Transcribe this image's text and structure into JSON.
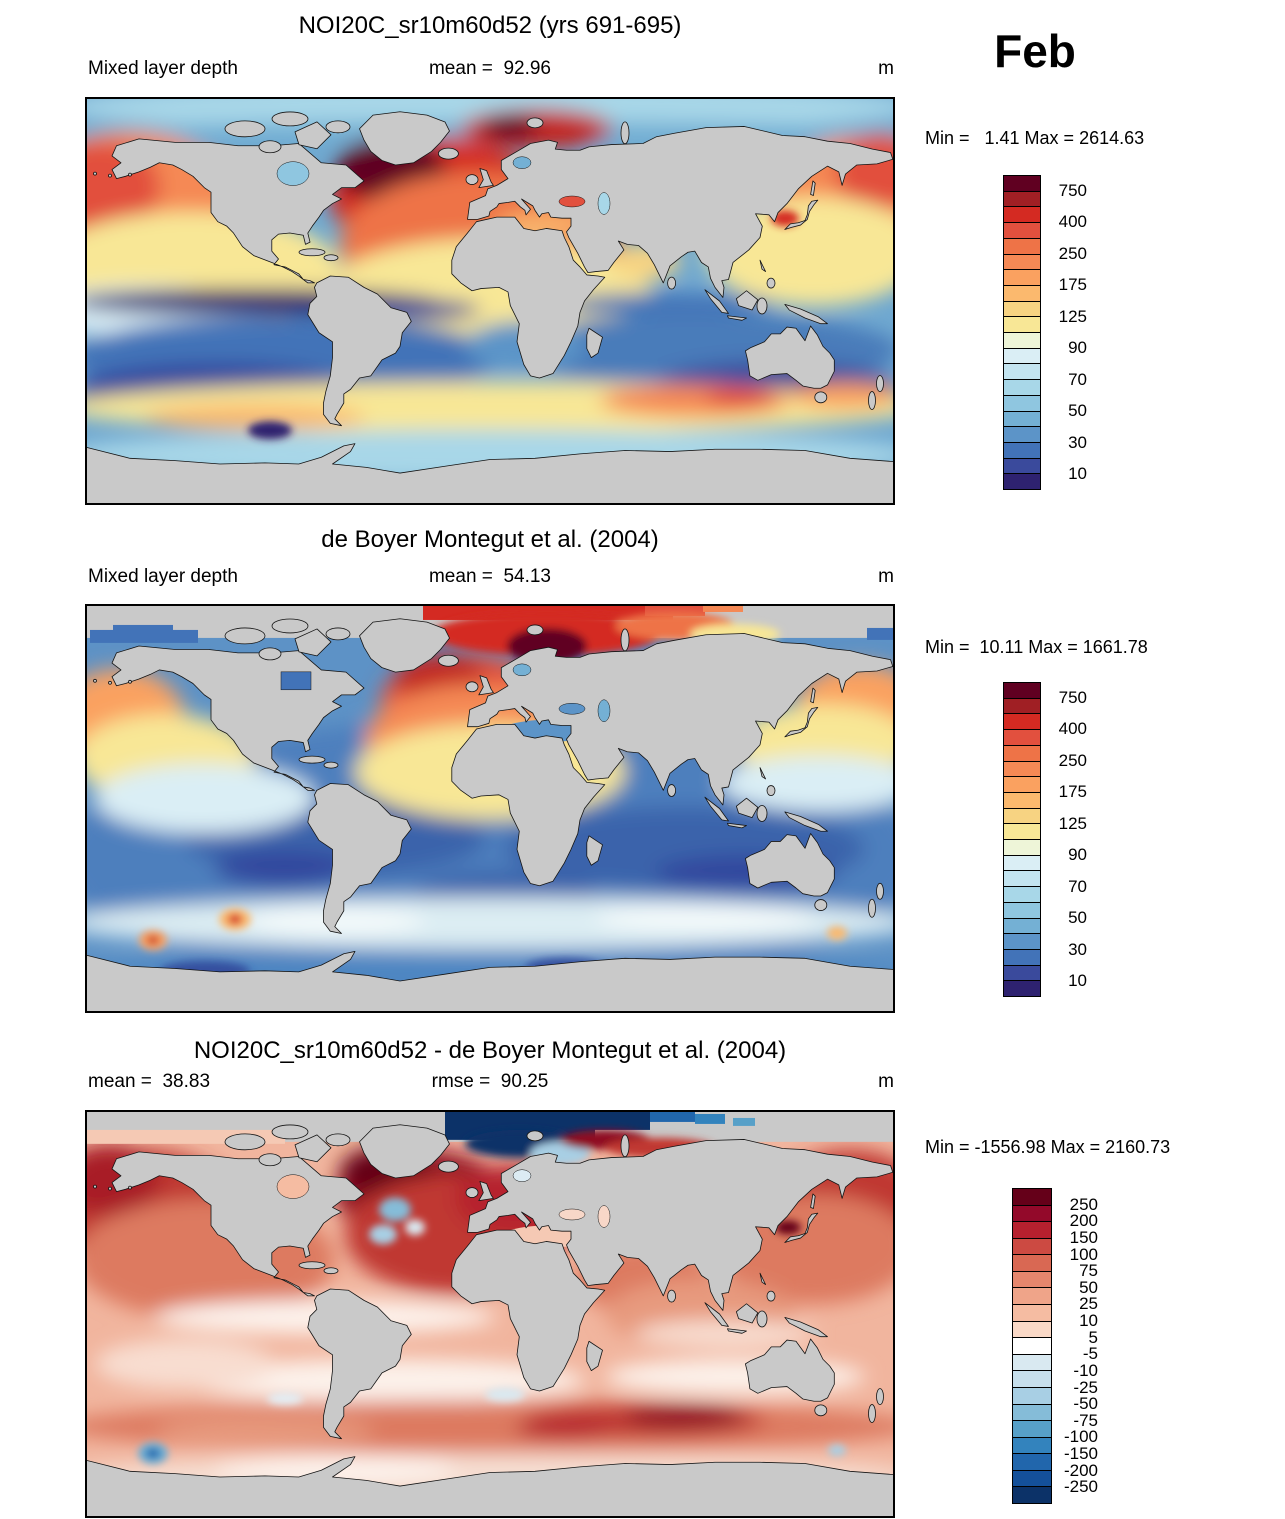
{
  "figure": {
    "month_label": "Feb",
    "panels": [
      {
        "title": "NOI20C_sr10m60d52 (yrs 691-695)",
        "label_left": "Mixed layer depth",
        "label_center": "mean =  92.96",
        "units": "m",
        "minmax": "Min =   1.41 Max = 2614.63",
        "colorbar": {
          "label_step": 2,
          "labels": [
            "750",
            "400",
            "250",
            "175",
            "125",
            "90",
            "70",
            "50",
            "30",
            "10"
          ],
          "colors": [
            "#600021",
            "#a01f24",
            "#d42a22",
            "#e2503e",
            "#ee7347",
            "#f58955",
            "#faa160",
            "#fbb96e",
            "#f7d382",
            "#f8e796",
            "#eef5d8",
            "#daeef5",
            "#c3e4f0",
            "#a8d7e8",
            "#8fc6e0",
            "#74b0d4",
            "#5c94c8",
            "#4273b8",
            "#3a4a9c",
            "#2e2270"
          ]
        }
      },
      {
        "title": "de Boyer Montegut et al. (2004)",
        "label_left": "Mixed layer depth",
        "label_center": "mean =  54.13",
        "units": "m",
        "minmax": "Min =  10.11 Max = 1661.78",
        "colorbar": {
          "label_step": 2,
          "labels": [
            "750",
            "400",
            "250",
            "175",
            "125",
            "90",
            "70",
            "50",
            "30",
            "10"
          ],
          "colors": [
            "#600021",
            "#a01f24",
            "#d42a22",
            "#e2503e",
            "#ee7347",
            "#f58955",
            "#faa160",
            "#fbb96e",
            "#f7d382",
            "#f8e796",
            "#eef5d8",
            "#daeef5",
            "#c3e4f0",
            "#a8d7e8",
            "#8fc6e0",
            "#74b0d4",
            "#5c94c8",
            "#4273b8",
            "#3a4a9c",
            "#2e2270"
          ]
        }
      },
      {
        "title": "NOI20C_sr10m60d52 - de Boyer Montegut et al. (2004)",
        "label_left": "mean =  38.83",
        "label_center": "rmse =  90.25",
        "units": "m",
        "minmax": "Min = -1556.98 Max = 2160.73",
        "colorbar": {
          "label_step": 1,
          "labels": [
            "250",
            "200",
            "150",
            "100",
            "75",
            "50",
            "25",
            "10",
            "5",
            "-5",
            "-10",
            "-25",
            "-50",
            "-75",
            "-100",
            "-150",
            "-200",
            "-250"
          ],
          "colors": [
            "#650019",
            "#93092a",
            "#b6202e",
            "#cc4a42",
            "#d96853",
            "#e5866d",
            "#efa489",
            "#f5bca2",
            "#fad9c7",
            "#ffffff",
            "#d9e9f1",
            "#c7dfec",
            "#a8cfe4",
            "#85bcd8",
            "#57a0c8",
            "#3383bd",
            "#2166ac",
            "#14509a",
            "#0c3268"
          ]
        }
      }
    ]
  },
  "chart_data": [
    {
      "type": "heatmap",
      "panel": 1,
      "title": "NOI20C_sr10m60d52 (yrs 691-695)",
      "variable": "Mixed layer depth",
      "units": "m",
      "month": "Feb",
      "mean": 92.96,
      "min": 1.41,
      "max": 2614.63,
      "contour_levels": [
        10,
        20,
        30,
        40,
        50,
        60,
        70,
        80,
        90,
        100,
        125,
        150,
        175,
        200,
        250,
        300,
        400,
        500,
        750
      ],
      "labeled_levels": [
        750,
        400,
        250,
        175,
        125,
        90,
        70,
        50,
        30,
        10
      ],
      "projection": "global equirectangular, 90N-90S, 180W-180E",
      "description": "Model February mixed layer depth: very deep (>400 m, dark red) subpolar North Atlantic and Nordic Seas; 100-250 m (orange/yellow) North Pacific; shallow (<50 m, blue) tropics and Southern Hemisphere subtropics with darkest blue along the equator; 100-175 m yellow band near 40-55S; light blue Southern Ocean; gray continents."
    },
    {
      "type": "heatmap",
      "panel": 2,
      "title": "de Boyer Montegut et al. (2004)",
      "variable": "Mixed layer depth",
      "units": "m",
      "month": "Feb",
      "mean": 54.13,
      "min": 10.11,
      "max": 1661.78,
      "contour_levels": [
        10,
        20,
        30,
        40,
        50,
        60,
        70,
        80,
        90,
        100,
        125,
        150,
        175,
        200,
        250,
        300,
        400,
        500,
        750
      ],
      "labeled_levels": [
        750,
        400,
        250,
        175,
        125,
        90,
        70,
        50,
        30,
        10
      ],
      "projection": "global equirectangular, 90N-90S, 180W-180E",
      "description": "Observed climatology: deep red cap over Arctic/Nordic Seas with >750 m core NE of Greenland; 175-400 m orange North Atlantic; 100-175 m yellow NW Pacific; shallow blue (<50 m) tropics and Southern Hemisphere; pale 70-90 m band near 45-55S with isolated orange spots; gray = no data (high Arctic corners and continents)."
    },
    {
      "type": "heatmap",
      "panel": 3,
      "title": "NOI20C_sr10m60d52 - de Boyer Montegut et al. (2004)",
      "variable": "Mixed layer depth difference (model minus observations)",
      "units": "m",
      "month": "Feb",
      "mean": 38.83,
      "rmse": 90.25,
      "min": -1556.98,
      "max": 2160.73,
      "contour_levels": [
        -250,
        -200,
        -150,
        -100,
        -75,
        -50,
        -25,
        -10,
        -5,
        5,
        10,
        25,
        50,
        75,
        100,
        150,
        200,
        250
      ],
      "labeled_levels": [
        250,
        200,
        150,
        100,
        75,
        50,
        25,
        10,
        5,
        -5,
        -10,
        -25,
        -50,
        -75,
        -100,
        -150,
        -200,
        -250
      ],
      "projection": "global equirectangular, 90N-90S, 180W-180E",
      "description": "Difference map: mostly positive (pink/red) bias; strong positive (>250 m, dark maroon) North Atlantic and along 45-55S south of Africa/Indian Ocean; strong negative (dark navy, <-250 m) flat cap over the Arctic north of Greenland/Barents; near-zero white bands in tropics and ~60S; scattered small blue negative spots."
    }
  ]
}
